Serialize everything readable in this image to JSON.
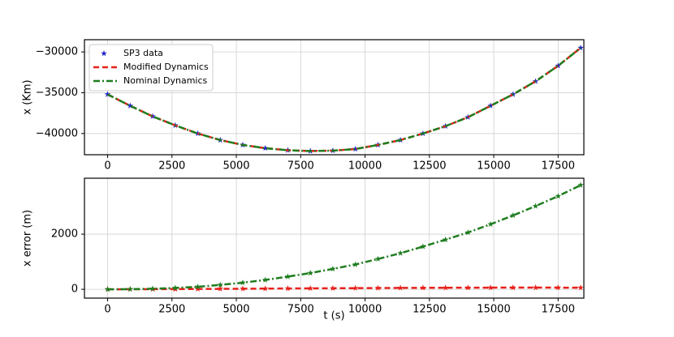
{
  "chart_data": [
    {
      "type": "line",
      "ylabel": "x (Km)",
      "legend": "upper left",
      "grid": true,
      "x": [
        0,
        875,
        1750,
        2625,
        3500,
        4375,
        5250,
        6125,
        7000,
        7875,
        8750,
        9625,
        10500,
        11375,
        12250,
        13125,
        14000,
        14875,
        15750,
        16625,
        17500,
        18375
      ],
      "xlim": [
        -900,
        18500
      ],
      "xticks": [
        0,
        2500,
        5000,
        7500,
        10000,
        12500,
        15000,
        17500
      ],
      "ylim": [
        -42600,
        -28500
      ],
      "yticks": [
        {
          "value": -40000,
          "label": "−40000"
        },
        {
          "value": -35000,
          "label": "−35000"
        },
        {
          "value": -30000,
          "label": "−30000"
        }
      ],
      "series": [
        {
          "name": "SP3 data",
          "color": "#1f1fd0",
          "style": "markers",
          "values": [
            -35200,
            -36600,
            -37900,
            -39000,
            -40000,
            -40800,
            -41400,
            -41800,
            -42050,
            -42150,
            -42100,
            -41900,
            -41400,
            -40800,
            -40000,
            -39100,
            -38000,
            -36600,
            -35200,
            -33600,
            -31700,
            -29500
          ]
        },
        {
          "name": "Modified Dynamics",
          "color": "#e8201a",
          "style": "dashed",
          "values": [
            -35200,
            -36600,
            -37900,
            -39000,
            -40000,
            -40800,
            -41400,
            -41800,
            -42050,
            -42150,
            -42100,
            -41900,
            -41400,
            -40800,
            -40000,
            -39100,
            -38000,
            -36600,
            -35200,
            -33600,
            -31700,
            -29500
          ]
        },
        {
          "name": "Nominal Dynamics",
          "color": "#1e7d1e",
          "style": "dashdot",
          "values": [
            -35200,
            -36600,
            -37900,
            -39000,
            -40000,
            -40800,
            -41400,
            -41800,
            -42050,
            -42150,
            -42100,
            -41900,
            -41400,
            -40800,
            -40000,
            -39100,
            -38000,
            -36600,
            -35200,
            -33600,
            -31700,
            -29500
          ]
        }
      ]
    },
    {
      "type": "line",
      "ylabel": "x error (m)",
      "xlabel": "t (s)",
      "grid": true,
      "x": [
        0,
        875,
        1750,
        2625,
        3500,
        4375,
        5250,
        6125,
        7000,
        7875,
        8750,
        9625,
        10500,
        11375,
        12250,
        13125,
        14000,
        14875,
        15750,
        16625,
        17500,
        18375
      ],
      "xlim": [
        -900,
        18500
      ],
      "xticks": [
        0,
        2500,
        5000,
        7500,
        10000,
        12500,
        15000,
        17500
      ],
      "ylim": [
        -320,
        4030
      ],
      "yticks": [
        0,
        2000
      ],
      "series": [
        {
          "color": "#e8201a",
          "style": "dashed",
          "marker": "star",
          "values": [
            0,
            2,
            5,
            8,
            12,
            16,
            20,
            25,
            30,
            34,
            38,
            42,
            46,
            50,
            53,
            56,
            58,
            60,
            61,
            62,
            60,
            58
          ]
        },
        {
          "color": "#1e7d1e",
          "style": "dashdot",
          "marker": "star",
          "values": [
            0,
            5,
            20,
            50,
            90,
            160,
            240,
            340,
            460,
            590,
            740,
            900,
            1100,
            1310,
            1550,
            1800,
            2060,
            2360,
            2680,
            3020,
            3380,
            3780
          ]
        }
      ]
    }
  ]
}
